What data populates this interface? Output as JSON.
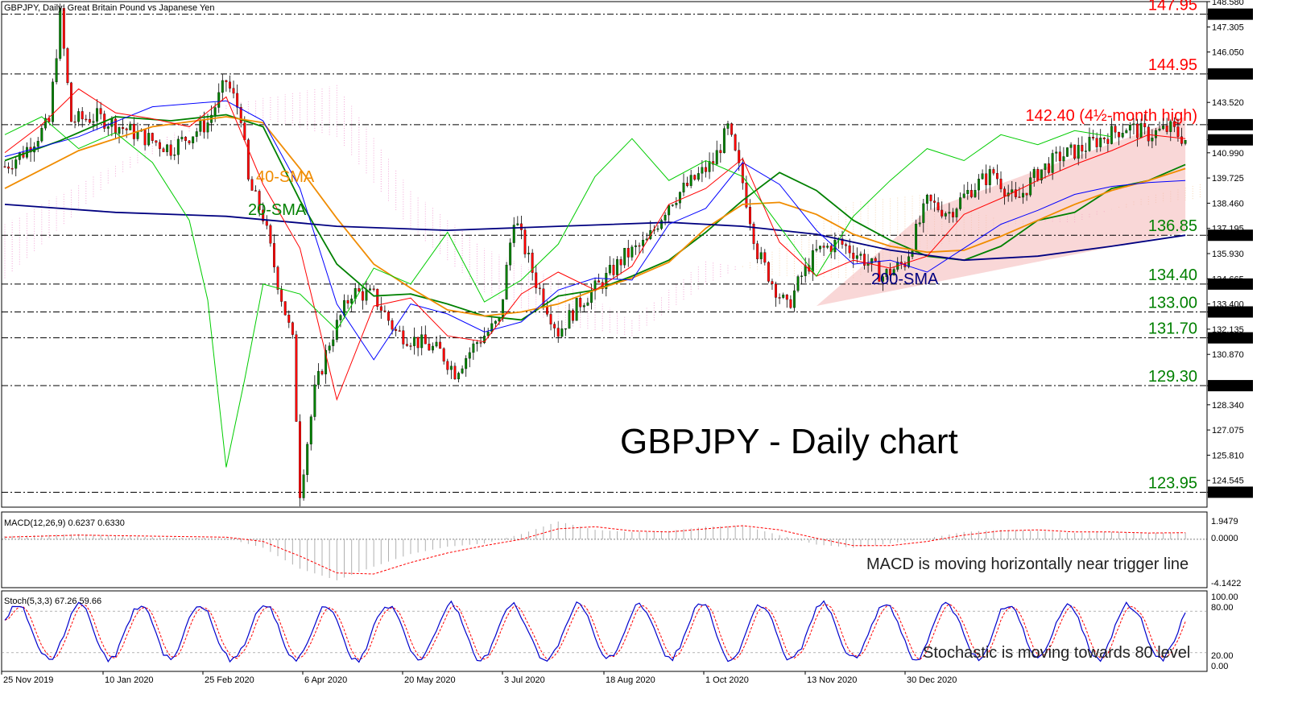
{
  "header": {
    "symbol_info": "GBPJPY, Daily:  Great Britain Pound vs Japanese Yen"
  },
  "main_title": "GBPJPY - Daily chart",
  "chart_data": {
    "type": "candlestick",
    "symbol": "GBPJPY",
    "timeframe": "Daily",
    "ylim": [
      123.2,
      148.58
    ],
    "y_ticks": [
      "148.580",
      "147.950",
      "147.305",
      "146.050",
      "144.950",
      "143.520",
      "142.400",
      "141.640",
      "140.990",
      "139.725",
      "138.460",
      "137.195",
      "136.850",
      "135.930",
      "134.665",
      "134.400",
      "133.400",
      "133.000",
      "132.135",
      "131.700",
      "130.870",
      "129.300",
      "128.340",
      "127.075",
      "125.810",
      "124.545",
      "123.950"
    ],
    "x_ticks": [
      "25 Nov 2019",
      "10 Jan 2020",
      "25 Feb 2020",
      "6 Apr 2020",
      "20 May 2020",
      "3 Jul 2020",
      "18 Aug 2020",
      "1 Oct 2020",
      "13 Nov 2020",
      "30 Dec 2020"
    ],
    "levels": [
      {
        "value": 147.95,
        "label": "147.95",
        "tag": "147.950",
        "color": "#ff0000"
      },
      {
        "value": 144.95,
        "label": "144.95",
        "tag": "144.950",
        "color": "#ff0000"
      },
      {
        "value": 142.4,
        "label": "142.40 (4½-month high)",
        "tag": "142.400",
        "color": "#ff0000"
      },
      {
        "value": 136.85,
        "label": "136.85",
        "tag": "136.850",
        "color": "#008000"
      },
      {
        "value": 134.4,
        "label": "134.40",
        "tag": "134.400",
        "color": "#008000"
      },
      {
        "value": 133.0,
        "label": "133.00",
        "tag": "133.000",
        "color": "#008000"
      },
      {
        "value": 131.7,
        "label": "131.70",
        "tag": "131.700",
        "color": "#008000"
      },
      {
        "value": 129.3,
        "label": "129.30",
        "tag": "129.300",
        "color": "#008000"
      },
      {
        "value": 123.95,
        "label": "123.95",
        "tag": "123.950",
        "color": "#008000"
      }
    ],
    "current_price": {
      "value": 141.64,
      "tag": "141.640"
    },
    "ma_labels": [
      {
        "text": "40-SMA",
        "color": "#f08c00"
      },
      {
        "text": "20-SMA",
        "color": "#008000"
      },
      {
        "text": "200-SMA",
        "color": "#000080"
      }
    ],
    "series": [
      {
        "name": "20-SMA",
        "color": "#008000",
        "values": [
          [
            0,
            140.6
          ],
          [
            15,
            141.6
          ],
          [
            30,
            142.8
          ],
          [
            45,
            142.6
          ],
          [
            60,
            142.9
          ],
          [
            70,
            142.3
          ],
          [
            80,
            138.6
          ],
          [
            90,
            135.4
          ],
          [
            100,
            133.8
          ],
          [
            110,
            133.9
          ],
          [
            120,
            133.4
          ],
          [
            130,
            132.8
          ],
          [
            140,
            132.6
          ],
          [
            150,
            133.8
          ],
          [
            160,
            134.1
          ],
          [
            170,
            134.8
          ],
          [
            180,
            135.6
          ],
          [
            190,
            137.0
          ],
          [
            200,
            138.6
          ],
          [
            210,
            140.0
          ],
          [
            220,
            139.1
          ],
          [
            230,
            137.6
          ],
          [
            240,
            136.6
          ],
          [
            250,
            135.8
          ],
          [
            260,
            135.6
          ],
          [
            270,
            136.3
          ],
          [
            280,
            137.6
          ],
          [
            290,
            138.0
          ],
          [
            300,
            139.2
          ],
          [
            310,
            139.6
          ],
          [
            320,
            140.4
          ]
        ]
      },
      {
        "name": "40-SMA",
        "color": "#f08c00",
        "values": [
          [
            0,
            139.2
          ],
          [
            20,
            141.1
          ],
          [
            40,
            142.3
          ],
          [
            60,
            142.8
          ],
          [
            70,
            142.5
          ],
          [
            80,
            140.2
          ],
          [
            90,
            137.7
          ],
          [
            100,
            135.4
          ],
          [
            110,
            134.2
          ],
          [
            120,
            133.1
          ],
          [
            130,
            132.8
          ],
          [
            140,
            133.0
          ],
          [
            150,
            133.4
          ],
          [
            160,
            134.1
          ],
          [
            170,
            134.7
          ],
          [
            180,
            135.5
          ],
          [
            190,
            137.2
          ],
          [
            200,
            138.4
          ],
          [
            210,
            138.5
          ],
          [
            220,
            137.9
          ],
          [
            230,
            136.9
          ],
          [
            240,
            136.3
          ],
          [
            250,
            136.0
          ],
          [
            260,
            136.1
          ],
          [
            270,
            136.8
          ],
          [
            280,
            137.6
          ],
          [
            290,
            138.4
          ],
          [
            300,
            139.1
          ],
          [
            310,
            139.6
          ],
          [
            320,
            140.2
          ]
        ]
      },
      {
        "name": "200-SMA",
        "color": "#000080",
        "values": [
          [
            0,
            138.4
          ],
          [
            30,
            138.0
          ],
          [
            60,
            137.8
          ],
          [
            90,
            137.3
          ],
          [
            120,
            137.1
          ],
          [
            150,
            137.3
          ],
          [
            180,
            137.5
          ],
          [
            200,
            137.3
          ],
          [
            220,
            136.9
          ],
          [
            240,
            136.1
          ],
          [
            260,
            135.6
          ],
          [
            280,
            135.8
          ],
          [
            300,
            136.3
          ],
          [
            320,
            136.85
          ]
        ]
      },
      {
        "name": "Kijun",
        "color": "#0000ff",
        "values": [
          [
            0,
            140.8
          ],
          [
            20,
            141.8
          ],
          [
            40,
            143.3
          ],
          [
            60,
            143.6
          ],
          [
            70,
            142.6
          ],
          [
            80,
            139.2
          ],
          [
            90,
            133.4
          ],
          [
            100,
            130.6
          ],
          [
            110,
            133.4
          ],
          [
            120,
            132.9
          ],
          [
            130,
            132.0
          ],
          [
            140,
            132.5
          ],
          [
            150,
            134.1
          ],
          [
            160,
            134.7
          ],
          [
            170,
            134.6
          ],
          [
            180,
            137.4
          ],
          [
            190,
            138.2
          ],
          [
            200,
            140.5
          ],
          [
            210,
            139.4
          ],
          [
            220,
            137.1
          ],
          [
            230,
            135.4
          ],
          [
            240,
            135.6
          ],
          [
            250,
            135.0
          ],
          [
            260,
            136.2
          ],
          [
            270,
            137.4
          ],
          [
            280,
            138.1
          ],
          [
            290,
            138.9
          ],
          [
            300,
            139.3
          ],
          [
            310,
            139.5
          ],
          [
            320,
            139.6
          ]
        ]
      },
      {
        "name": "Tenkan",
        "color": "#ff0000",
        "values": [
          [
            0,
            141.0
          ],
          [
            10,
            142.4
          ],
          [
            20,
            144.2
          ],
          [
            30,
            143.0
          ],
          [
            40,
            142.7
          ],
          [
            50,
            142.3
          ],
          [
            60,
            143.8
          ],
          [
            70,
            139.4
          ],
          [
            80,
            136.2
          ],
          [
            90,
            128.6
          ],
          [
            100,
            133.3
          ],
          [
            110,
            133.7
          ],
          [
            120,
            131.8
          ],
          [
            130,
            131.5
          ],
          [
            140,
            133.9
          ],
          [
            150,
            135.0
          ],
          [
            160,
            134.1
          ],
          [
            170,
            135.3
          ],
          [
            180,
            138.4
          ],
          [
            190,
            139.2
          ],
          [
            200,
            140.7
          ],
          [
            210,
            136.5
          ],
          [
            220,
            134.8
          ],
          [
            230,
            135.6
          ],
          [
            240,
            135.2
          ],
          [
            250,
            135.8
          ],
          [
            260,
            137.9
          ],
          [
            270,
            138.7
          ],
          [
            280,
            139.6
          ],
          [
            290,
            140.4
          ],
          [
            300,
            141.1
          ],
          [
            310,
            141.9
          ],
          [
            320,
            141.7
          ]
        ]
      },
      {
        "name": "Chikou",
        "color": "#00cc00",
        "values": [
          [
            0,
            141.9
          ],
          [
            10,
            142.8
          ],
          [
            20,
            141.2
          ],
          [
            30,
            142.0
          ],
          [
            40,
            140.5
          ],
          [
            50,
            137.6
          ],
          [
            55,
            133.6
          ],
          [
            60,
            125.2
          ],
          [
            65,
            129.6
          ],
          [
            70,
            134.4
          ],
          [
            80,
            133.9
          ],
          [
            90,
            132.1
          ],
          [
            100,
            135.2
          ],
          [
            110,
            134.4
          ],
          [
            120,
            137.0
          ],
          [
            130,
            133.5
          ],
          [
            140,
            134.6
          ],
          [
            150,
            136.4
          ],
          [
            160,
            139.8
          ],
          [
            170,
            141.7
          ],
          [
            180,
            139.6
          ],
          [
            190,
            140.6
          ],
          [
            200,
            139.8
          ],
          [
            210,
            137.3
          ],
          [
            220,
            134.8
          ],
          [
            230,
            137.8
          ],
          [
            240,
            139.6
          ],
          [
            250,
            141.2
          ],
          [
            260,
            140.6
          ],
          [
            270,
            141.9
          ],
          [
            280,
            141.4
          ],
          [
            290,
            142.1
          ],
          [
            300,
            141.8
          ]
        ]
      }
    ],
    "ichimoku_cloud": [
      {
        "span_a": [
          [
            0,
            134.7
          ],
          [
            30,
            139.8
          ],
          [
            60,
            143.2
          ],
          [
            90,
            141.8
          ],
          [
            110,
            137.2
          ],
          [
            130,
            134.0
          ],
          [
            150,
            132.4
          ],
          [
            170,
            131.8
          ],
          [
            190,
            134.4
          ],
          [
            210,
            136.2
          ],
          [
            230,
            138.5
          ],
          [
            250,
            138.9
          ],
          [
            270,
            137.6
          ],
          [
            290,
            137.5
          ],
          [
            310,
            138.8
          ],
          [
            340,
            140.1
          ]
        ],
        "span_b": [
          [
            0,
            137.4
          ],
          [
            30,
            140.4
          ],
          [
            60,
            143.4
          ],
          [
            90,
            144.4
          ],
          [
            110,
            139.1
          ],
          [
            130,
            136.2
          ],
          [
            150,
            134.6
          ],
          [
            170,
            132.6
          ],
          [
            190,
            135.6
          ],
          [
            210,
            134.8
          ],
          [
            230,
            134.7
          ],
          [
            250,
            136.1
          ],
          [
            270,
            137.2
          ],
          [
            290,
            137.9
          ],
          [
            310,
            138.4
          ],
          [
            340,
            139.0
          ]
        ]
      }
    ],
    "channel": {
      "lower": [
        [
          220,
          133.3
        ],
        [
          320,
          137.0
        ]
      ],
      "upper": [
        [
          250,
          138.1
        ],
        [
          320,
          142.8
        ]
      ],
      "color": "#f4b6b6"
    },
    "annotations": []
  },
  "macd": {
    "label": "MACD(12,26,9) 0.6237 0.6330",
    "ticks": [
      "1.9479",
      "0.0000",
      "-4.1422"
    ],
    "ylim": [
      -4.6,
      2.6
    ],
    "note": "MACD is moving horizontally near trigger line",
    "values": [
      [
        0,
        0.3
      ],
      [
        20,
        0.5
      ],
      [
        40,
        0.2
      ],
      [
        60,
        0.1
      ],
      [
        70,
        -0.8
      ],
      [
        80,
        -2.8
      ],
      [
        90,
        -3.9
      ],
      [
        100,
        -2.6
      ],
      [
        110,
        -1.4
      ],
      [
        120,
        -0.7
      ],
      [
        130,
        -0.4
      ],
      [
        140,
        0.5
      ],
      [
        150,
        1.7
      ],
      [
        160,
        0.9
      ],
      [
        170,
        0.7
      ],
      [
        180,
        0.8
      ],
      [
        190,
        1.2
      ],
      [
        200,
        1.3
      ],
      [
        210,
        0.4
      ],
      [
        220,
        -0.5
      ],
      [
        230,
        -0.8
      ],
      [
        240,
        -0.4
      ],
      [
        250,
        0.1
      ],
      [
        260,
        0.7
      ],
      [
        270,
        0.9
      ],
      [
        280,
        0.8
      ],
      [
        290,
        0.6
      ],
      [
        300,
        0.7
      ],
      [
        310,
        0.6
      ],
      [
        320,
        0.62
      ]
    ],
    "signal": [
      [
        0,
        0.2
      ],
      [
        20,
        0.4
      ],
      [
        40,
        0.3
      ],
      [
        60,
        0.2
      ],
      [
        70,
        -0.2
      ],
      [
        80,
        -1.6
      ],
      [
        90,
        -3.2
      ],
      [
        100,
        -3.3
      ],
      [
        110,
        -2.2
      ],
      [
        120,
        -1.3
      ],
      [
        130,
        -0.6
      ],
      [
        140,
        0.0
      ],
      [
        150,
        1.0
      ],
      [
        160,
        1.2
      ],
      [
        170,
        0.8
      ],
      [
        180,
        0.7
      ],
      [
        190,
        1.0
      ],
      [
        200,
        1.3
      ],
      [
        210,
        0.9
      ],
      [
        220,
        0.1
      ],
      [
        230,
        -0.6
      ],
      [
        240,
        -0.6
      ],
      [
        250,
        -0.2
      ],
      [
        260,
        0.4
      ],
      [
        270,
        0.8
      ],
      [
        280,
        0.9
      ],
      [
        290,
        0.7
      ],
      [
        300,
        0.7
      ],
      [
        310,
        0.6
      ],
      [
        320,
        0.63
      ]
    ]
  },
  "stoch": {
    "label": "Stoch(5,3,3) 67.26 59.66",
    "ticks": [
      "100.00",
      "80.00",
      "20.00",
      "0.00"
    ],
    "note": "Stochastic is moving towards 80 level"
  }
}
